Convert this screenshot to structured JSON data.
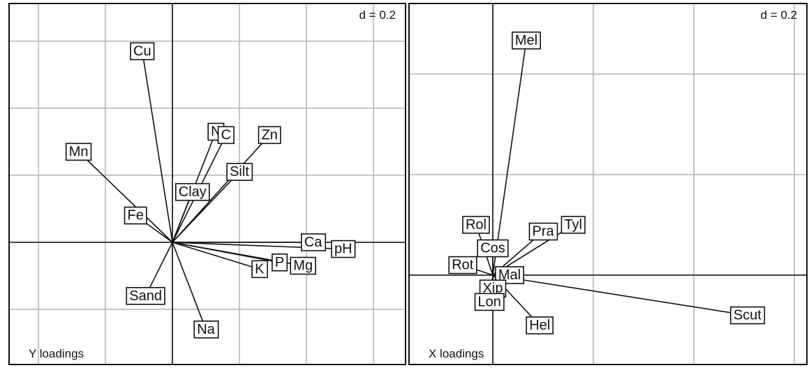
{
  "chart_data": [
    {
      "type": "scatter",
      "subtitle": "Y loadings",
      "scale_text": "d = 0.2",
      "grid": true,
      "xlim": [
        -0.5,
        0.7
      ],
      "ylim": [
        -0.38,
        0.72
      ],
      "points": [
        {
          "label": "Cu",
          "x": -0.09,
          "y": 0.57
        },
        {
          "label": "Mn",
          "x": -0.28,
          "y": 0.27
        },
        {
          "label": "Fe",
          "x": -0.11,
          "y": 0.08
        },
        {
          "label": "Clay",
          "x": 0.06,
          "y": 0.15
        },
        {
          "label": "N",
          "x": 0.13,
          "y": 0.33
        },
        {
          "label": "C",
          "x": 0.16,
          "y": 0.32
        },
        {
          "label": "Zn",
          "x": 0.29,
          "y": 0.32
        },
        {
          "label": "Silt",
          "x": 0.2,
          "y": 0.21
        },
        {
          "label": "Ca",
          "x": 0.42,
          "y": 0.0
        },
        {
          "label": "pH",
          "x": 0.51,
          "y": -0.02
        },
        {
          "label": "P",
          "x": 0.32,
          "y": -0.06
        },
        {
          "label": "Mg",
          "x": 0.39,
          "y": -0.07
        },
        {
          "label": "K",
          "x": 0.26,
          "y": -0.08
        },
        {
          "label": "Sand",
          "x": -0.08,
          "y": -0.16
        },
        {
          "label": "Na",
          "x": 0.1,
          "y": -0.26
        }
      ]
    },
    {
      "type": "scatter",
      "subtitle": "X loadings",
      "scale_text": "d = 0.2",
      "grid": true,
      "xlim": [
        -0.22,
        0.96
      ],
      "ylim": [
        -0.26,
        0.8
      ],
      "points": [
        {
          "label": "Mel",
          "x": 0.1,
          "y": 0.7
        },
        {
          "label": "Rol",
          "x": -0.05,
          "y": 0.15
        },
        {
          "label": "Cos",
          "x": 0.0,
          "y": 0.08
        },
        {
          "label": "Pra",
          "x": 0.15,
          "y": 0.13
        },
        {
          "label": "Tyl",
          "x": 0.24,
          "y": 0.15
        },
        {
          "label": "Rot",
          "x": -0.09,
          "y": 0.03
        },
        {
          "label": "Mal",
          "x": 0.05,
          "y": 0.0
        },
        {
          "label": "Xip",
          "x": 0.0,
          "y": -0.04
        },
        {
          "label": "Lon",
          "x": -0.01,
          "y": -0.08
        },
        {
          "label": "Hel",
          "x": 0.14,
          "y": -0.15
        },
        {
          "label": "Scut",
          "x": 0.76,
          "y": -0.12
        }
      ]
    }
  ]
}
